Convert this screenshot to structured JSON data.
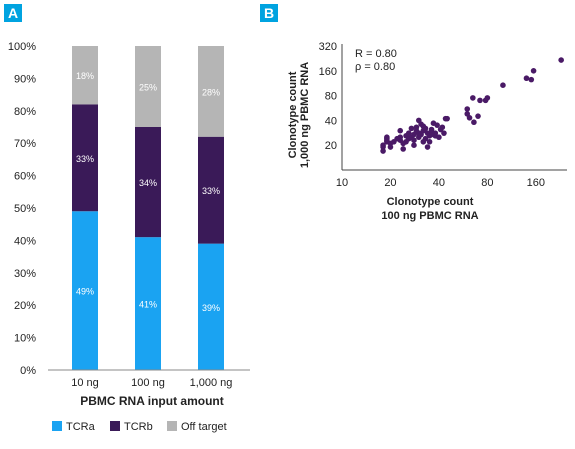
{
  "panels": {
    "a": {
      "label": "A",
      "badge_color": "#00A3E0"
    },
    "b": {
      "label": "B",
      "badge_color": "#00A3E0"
    }
  },
  "chart_data": [
    {
      "type": "bar",
      "stacked": true,
      "categories": [
        "10 ng",
        "100 ng",
        "1,000 ng"
      ],
      "series": [
        {
          "name": "TCRa",
          "values": [
            49,
            41,
            39
          ],
          "labels": [
            "49%",
            "41%",
            "39%"
          ],
          "color": "#1AA3F2"
        },
        {
          "name": "TCRb",
          "values": [
            33,
            34,
            33
          ],
          "labels": [
            "33%",
            "34%",
            "33%"
          ],
          "color": "#3A1A58"
        },
        {
          "name": "Off target",
          "values": [
            18,
            25,
            28
          ],
          "labels": [
            "18%",
            "25%",
            "28%"
          ],
          "color": "#B5B5B5"
        }
      ],
      "xlabel": "PBMC RNA input amount",
      "ylabel": "",
      "ylim": [
        0,
        100
      ],
      "yticks": [
        "0%",
        "10%",
        "20%",
        "30%",
        "40%",
        "50%",
        "60%",
        "70%",
        "80%",
        "90%",
        "100%"
      ],
      "legend_position": "bottom",
      "grid": false
    },
    {
      "type": "scatter",
      "xscale": "log2",
      "yscale": "log2",
      "xlabel": "Clonotype count\n100 ng PBMC RNA",
      "xlabel_lines": [
        "Clonotype count",
        "100 ng PBMC RNA"
      ],
      "ylabel_lines": [
        "Clonotype count",
        "1,000 ng PBMC RNA"
      ],
      "xlim": [
        10,
        250
      ],
      "ylim": [
        10,
        320
      ],
      "xticks": [
        10,
        20,
        40,
        80,
        160
      ],
      "yticks": [
        20,
        40,
        80,
        160,
        320
      ],
      "annotations": [
        "R = 0.80",
        "ρ = 0.80"
      ],
      "point_color": "#4A1A66",
      "grid": false,
      "x": [
        18,
        18,
        18,
        19,
        19,
        19,
        19,
        20,
        20,
        21,
        22,
        23,
        23,
        23,
        24,
        24,
        25,
        25,
        26,
        26,
        27,
        27,
        28,
        28,
        28,
        29,
        29,
        30,
        30,
        30,
        31,
        31,
        32,
        32,
        32,
        33,
        33,
        34,
        34,
        35,
        35,
        36,
        36,
        37,
        37,
        38,
        38,
        39,
        40,
        41,
        42,
        43,
        44,
        45,
        60,
        60,
        62,
        65,
        66,
        70,
        72,
        78,
        80,
        100,
        140,
        150,
        155,
        230
      ],
      "y": [
        17,
        19,
        20,
        22,
        23,
        24,
        25,
        21,
        19,
        22,
        24,
        23,
        25,
        30,
        21,
        18,
        22,
        26,
        24,
        28,
        25,
        32,
        23,
        27,
        20,
        33,
        30,
        25,
        28,
        40,
        27,
        36,
        22,
        30,
        34,
        24,
        32,
        28,
        19,
        26,
        22,
        31,
        29,
        27,
        37,
        26,
        28,
        35,
        25,
        31,
        33,
        28,
        42,
        42,
        48,
        55,
        43,
        75,
        38,
        45,
        70,
        70,
        75,
        107,
        130,
        125,
        160,
        216
      ]
    }
  ]
}
